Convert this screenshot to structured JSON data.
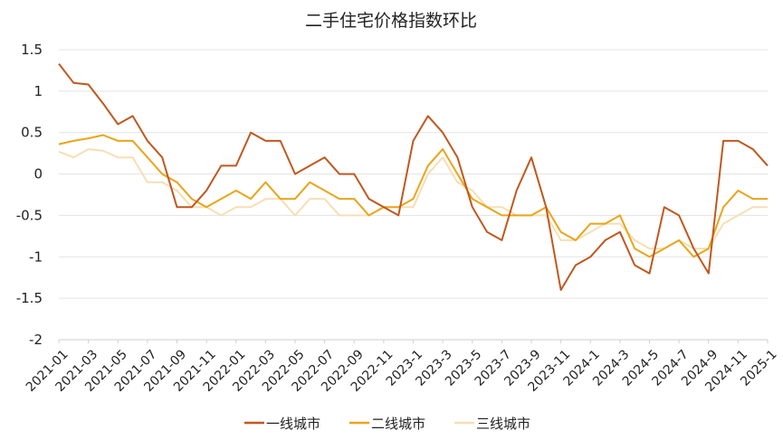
{
  "chart_data": {
    "type": "line",
    "title": "二手住宅价格指数环比",
    "xlabel": "",
    "ylabel": "",
    "ylim": [
      -2,
      1.5
    ],
    "yticks": [
      "1.5",
      "1",
      "0.5",
      "0",
      "-0.5",
      "-1",
      "-1.5",
      "-2"
    ],
    "ytick_values": [
      1.5,
      1,
      0.5,
      0,
      -0.5,
      -1,
      -1.5,
      -2
    ],
    "grid": "horizontal",
    "legend_position": "bottom",
    "x_tick_labels": [
      "2021-01",
      "2021-03",
      "2021-05",
      "2021-07",
      "2021-09",
      "2021-11",
      "2022-01",
      "2022-03",
      "2022-05",
      "2022-07",
      "2022-09",
      "2022-11",
      "2023-1",
      "2023-3",
      "2023-5",
      "2023-7",
      "2023-9",
      "2023-11",
      "2024-1",
      "2024-3",
      "2024-5",
      "2024-7",
      "2024-9",
      "2024-11",
      "2025-1"
    ],
    "x": [
      "2021-01",
      "2021-02",
      "2021-03",
      "2021-04",
      "2021-05",
      "2021-06",
      "2021-07",
      "2021-08",
      "2021-09",
      "2021-10",
      "2021-11",
      "2021-12",
      "2022-01",
      "2022-02",
      "2022-03",
      "2022-04",
      "2022-05",
      "2022-06",
      "2022-07",
      "2022-08",
      "2022-09",
      "2022-10",
      "2022-11",
      "2022-12",
      "2023-01",
      "2023-02",
      "2023-03",
      "2023-04",
      "2023-05",
      "2023-06",
      "2023-07",
      "2023-08",
      "2023-09",
      "2023-10",
      "2023-11",
      "2023-12",
      "2024-01",
      "2024-02",
      "2024-03",
      "2024-04",
      "2024-05",
      "2024-06",
      "2024-07",
      "2024-08",
      "2024-09",
      "2024-10",
      "2024-11",
      "2024-12",
      "2025-01"
    ],
    "series": [
      {
        "name": "一线城市",
        "color": "#c0581f",
        "values": [
          1.33,
          1.1,
          1.08,
          0.85,
          0.6,
          0.7,
          0.4,
          0.2,
          -0.4,
          -0.4,
          -0.2,
          0.1,
          0.1,
          0.5,
          0.4,
          0.4,
          0.0,
          0.1,
          0.2,
          0.0,
          0.0,
          -0.3,
          -0.4,
          -0.5,
          0.4,
          0.7,
          0.5,
          0.2,
          -0.4,
          -0.7,
          -0.8,
          -0.2,
          0.2,
          -0.4,
          -1.4,
          -1.1,
          -1.0,
          -0.8,
          -0.7,
          -1.1,
          -1.2,
          -0.4,
          -0.5,
          -0.9,
          -1.2,
          0.4,
          0.4,
          0.3,
          0.1
        ]
      },
      {
        "name": "二线城市",
        "color": "#eaa51a",
        "values": [
          0.36,
          0.4,
          0.43,
          0.47,
          0.4,
          0.4,
          0.2,
          0.0,
          -0.1,
          -0.3,
          -0.4,
          -0.3,
          -0.2,
          -0.3,
          -0.1,
          -0.3,
          -0.3,
          -0.1,
          -0.2,
          -0.3,
          -0.3,
          -0.5,
          -0.4,
          -0.4,
          -0.3,
          0.1,
          0.3,
          0.0,
          -0.3,
          -0.4,
          -0.5,
          -0.5,
          -0.5,
          -0.4,
          -0.7,
          -0.8,
          -0.6,
          -0.6,
          -0.5,
          -0.9,
          -1.0,
          -0.9,
          -0.8,
          -1.0,
          -0.9,
          -0.4,
          -0.2,
          -0.3,
          -0.3
        ]
      },
      {
        "name": "三线城市",
        "color": "#f6dfb5",
        "values": [
          0.27,
          0.2,
          0.3,
          0.28,
          0.2,
          0.2,
          -0.1,
          -0.1,
          -0.2,
          -0.4,
          -0.4,
          -0.5,
          -0.4,
          -0.4,
          -0.3,
          -0.3,
          -0.5,
          -0.3,
          -0.3,
          -0.5,
          -0.5,
          -0.5,
          -0.4,
          -0.4,
          -0.4,
          0.0,
          0.2,
          -0.1,
          -0.2,
          -0.4,
          -0.4,
          -0.5,
          -0.5,
          -0.5,
          -0.8,
          -0.8,
          -0.7,
          -0.6,
          -0.6,
          -0.8,
          -0.9,
          -0.9,
          -0.8,
          -0.9,
          -0.9,
          -0.6,
          -0.5,
          -0.4,
          -0.4
        ]
      }
    ]
  }
}
